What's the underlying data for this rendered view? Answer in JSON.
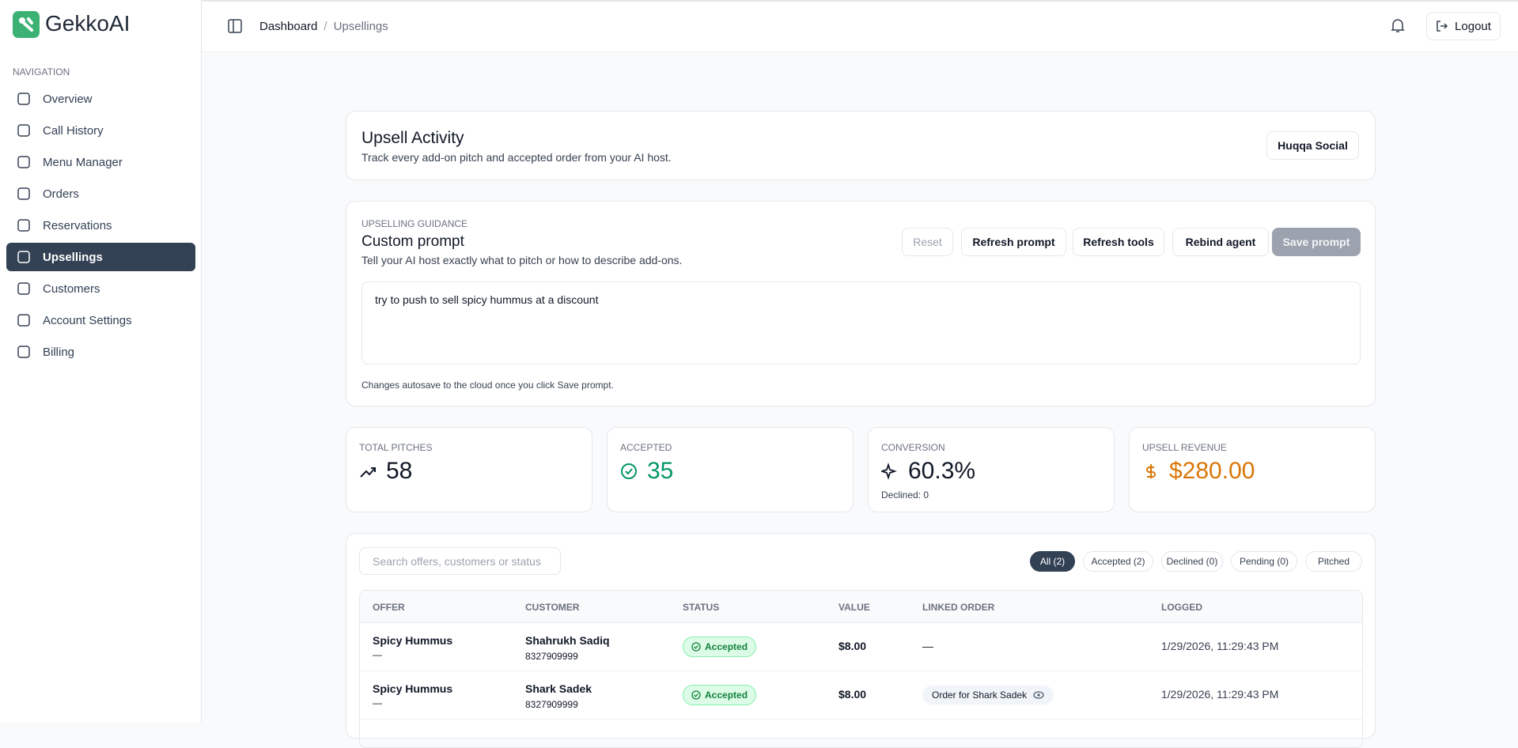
{
  "brand": "GekkoAI",
  "sidebar": {
    "section_label": "NAVIGATION",
    "items": [
      "Overview",
      "Call History",
      "Menu Manager",
      "Orders",
      "Reservations",
      "Upsellings",
      "Customers",
      "Account Settings",
      "Billing"
    ],
    "active": "Upsellings"
  },
  "header": {
    "breadcrumb": [
      "Dashboard",
      "/",
      "Upsellings"
    ],
    "logout": "Logout"
  },
  "activity": {
    "title": "Upsell Activity",
    "subtitle": "Track every add-on pitch and accepted order from your AI host.",
    "venue": "Huqqa Social"
  },
  "guidance": {
    "eyebrow": "UPSELLING GUIDANCE",
    "title": "Custom prompt",
    "subtitle": "Tell your AI host exactly what to pitch or how to describe add-ons.",
    "buttons": [
      "Reset",
      "Refresh prompt",
      "Refresh tools",
      "Rebind agent",
      "Save prompt"
    ],
    "prompt": "try to push to sell spicy hummus at a discount",
    "note": "Changes autosave to the cloud once you click Save prompt."
  },
  "stats": [
    {
      "label": "TOTAL PITCHES",
      "value": "58"
    },
    {
      "label": "ACCEPTED",
      "value": "35"
    },
    {
      "label": "CONVERSION",
      "value": "60.3%",
      "sub": "Declined: 0"
    },
    {
      "label": "UPSELL REVENUE",
      "value": "$280.00"
    }
  ],
  "table": {
    "search_placeholder": "Search offers, customers or status",
    "filters": [
      "All (2)",
      "Accepted (2)",
      "Declined (0)",
      "Pending (0)",
      "Pitched"
    ],
    "columns": [
      "OFFER",
      "CUSTOMER",
      "STATUS",
      "VALUE",
      "LINKED ORDER",
      "LOGGED"
    ],
    "rows": [
      {
        "offer": "Spicy Hummus",
        "offer_sub": "—",
        "customer": "Shahrukh Sadiq",
        "phone": "8327909999",
        "status": "Accepted",
        "value": "$8.00",
        "linked_order": "—",
        "logged": "1/29/2026, 11:29:43 PM"
      },
      {
        "offer": "Spicy Hummus",
        "offer_sub": "—",
        "customer": "Shark Sadek",
        "phone": "8327909999",
        "status": "Accepted",
        "value": "$8.00",
        "linked_order": "Order for Shark Sadek",
        "logged": "1/29/2026, 11:29:43 PM"
      }
    ]
  }
}
